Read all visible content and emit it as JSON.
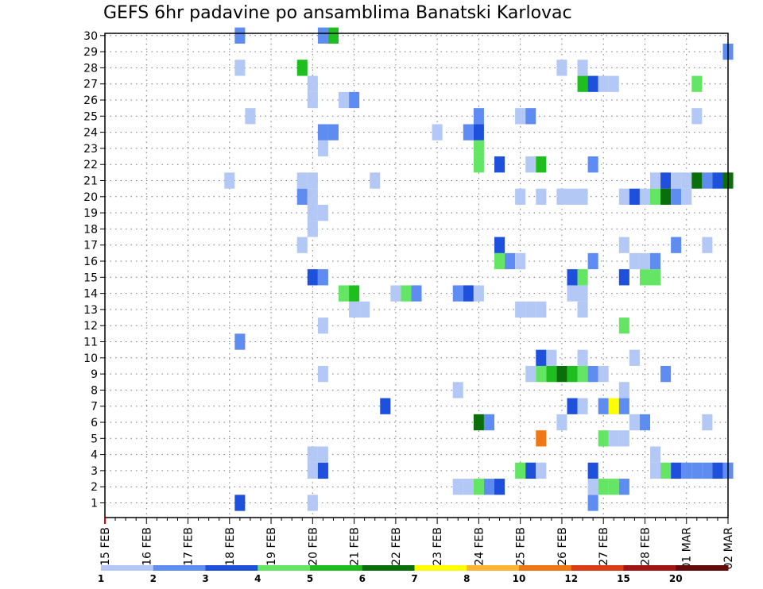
{
  "chart_data": {
    "type": "heatmap",
    "title": "GEFS 6hr padavine po ansamblima Banatski Karlovac",
    "xlabel": "",
    "ylabel": "",
    "y_members": [
      1,
      2,
      3,
      4,
      5,
      6,
      7,
      8,
      9,
      10,
      11,
      12,
      13,
      14,
      15,
      16,
      17,
      18,
      19,
      20,
      21,
      22,
      23,
      24,
      25,
      26,
      27,
      28,
      29,
      30
    ],
    "x_unit": "days from 15 FEB (6-hour steps)",
    "xlim": [
      0,
      15
    ],
    "x_tick_labels": [
      "15 FEB",
      "16 FEB",
      "17 FEB",
      "18 FEB",
      "19 FEB",
      "20 FEB",
      "21 FEB",
      "22 FEB",
      "23 FEB",
      "24 FEB",
      "25 FEB",
      "26 FEB",
      "27 FEB",
      "28 FEB",
      "01 MAR",
      "02 MAR"
    ],
    "grid": true,
    "legend": {
      "placement": "bottom",
      "thresholds": [
        "1",
        "2",
        "3",
        "4",
        "5",
        "6",
        "7",
        "8",
        "10",
        "12",
        "15",
        "20"
      ],
      "colors": [
        "#b4c8f5",
        "#5f8cf0",
        "#1e50dc",
        "#64e664",
        "#1ebe1e",
        "#0a6e0a",
        "#ffff00",
        "#ffb432",
        "#f07814",
        "#dc3c14",
        "#a01414",
        "#640a0a"
      ]
    },
    "cells": [
      {
        "member": 1,
        "day": 3.25,
        "level": 3
      },
      {
        "member": 1,
        "day": 5.0,
        "level": 1
      },
      {
        "member": 1,
        "day": 11.75,
        "level": 2
      },
      {
        "member": 2,
        "day": 8.5,
        "level": 1
      },
      {
        "member": 2,
        "day": 8.75,
        "level": 1
      },
      {
        "member": 2,
        "day": 9.0,
        "level": 4
      },
      {
        "member": 2,
        "day": 9.25,
        "level": 2
      },
      {
        "member": 2,
        "day": 9.5,
        "level": 3
      },
      {
        "member": 2,
        "day": 11.75,
        "level": 1
      },
      {
        "member": 2,
        "day": 12.0,
        "level": 4
      },
      {
        "member": 2,
        "day": 12.25,
        "level": 4
      },
      {
        "member": 2,
        "day": 12.5,
        "level": 2
      },
      {
        "member": 3,
        "day": 5.0,
        "level": 1
      },
      {
        "member": 3,
        "day": 5.25,
        "level": 3
      },
      {
        "member": 3,
        "day": 10.0,
        "level": 4
      },
      {
        "member": 3,
        "day": 10.25,
        "level": 3
      },
      {
        "member": 3,
        "day": 10.5,
        "level": 1
      },
      {
        "member": 3,
        "day": 11.75,
        "level": 3
      },
      {
        "member": 3,
        "day": 13.25,
        "level": 1
      },
      {
        "member": 3,
        "day": 13.5,
        "level": 4
      },
      {
        "member": 3,
        "day": 13.75,
        "level": 3
      },
      {
        "member": 3,
        "day": 14.0,
        "level": 2
      },
      {
        "member": 3,
        "day": 14.25,
        "level": 2
      },
      {
        "member": 3,
        "day": 14.5,
        "level": 2
      },
      {
        "member": 3,
        "day": 14.75,
        "level": 3
      },
      {
        "member": 3,
        "day": 15.0,
        "level": 2
      },
      {
        "member": 4,
        "day": 5.0,
        "level": 1
      },
      {
        "member": 4,
        "day": 5.25,
        "level": 1
      },
      {
        "member": 4,
        "day": 13.25,
        "level": 1
      },
      {
        "member": 5,
        "day": 10.5,
        "level": 9
      },
      {
        "member": 5,
        "day": 12.0,
        "level": 4
      },
      {
        "member": 5,
        "day": 12.25,
        "level": 1
      },
      {
        "member": 5,
        "day": 12.5,
        "level": 1
      },
      {
        "member": 6,
        "day": 9.0,
        "level": 6
      },
      {
        "member": 6,
        "day": 9.25,
        "level": 2
      },
      {
        "member": 6,
        "day": 11.0,
        "level": 1
      },
      {
        "member": 6,
        "day": 12.75,
        "level": 1
      },
      {
        "member": 6,
        "day": 13.0,
        "level": 2
      },
      {
        "member": 6,
        "day": 14.5,
        "level": 1
      },
      {
        "member": 7,
        "day": 6.75,
        "level": 3
      },
      {
        "member": 7,
        "day": 11.25,
        "level": 3
      },
      {
        "member": 7,
        "day": 11.5,
        "level": 1
      },
      {
        "member": 7,
        "day": 12.0,
        "level": 2
      },
      {
        "member": 7,
        "day": 12.25,
        "level": 7
      },
      {
        "member": 7,
        "day": 12.5,
        "level": 2
      },
      {
        "member": 8,
        "day": 8.5,
        "level": 1
      },
      {
        "member": 8,
        "day": 12.5,
        "level": 1
      },
      {
        "member": 9,
        "day": 5.25,
        "level": 1
      },
      {
        "member": 9,
        "day": 10.25,
        "level": 1
      },
      {
        "member": 9,
        "day": 10.5,
        "level": 4
      },
      {
        "member": 9,
        "day": 10.75,
        "level": 5
      },
      {
        "member": 9,
        "day": 11.0,
        "level": 6
      },
      {
        "member": 9,
        "day": 11.25,
        "level": 5
      },
      {
        "member": 9,
        "day": 11.5,
        "level": 4
      },
      {
        "member": 9,
        "day": 11.75,
        "level": 2
      },
      {
        "member": 9,
        "day": 12.0,
        "level": 1
      },
      {
        "member": 9,
        "day": 13.5,
        "level": 2
      },
      {
        "member": 10,
        "day": 10.5,
        "level": 3
      },
      {
        "member": 10,
        "day": 10.75,
        "level": 1
      },
      {
        "member": 10,
        "day": 11.5,
        "level": 1
      },
      {
        "member": 10,
        "day": 12.75,
        "level": 1
      },
      {
        "member": 11,
        "day": 3.25,
        "level": 2
      },
      {
        "member": 12,
        "day": 5.25,
        "level": 1
      },
      {
        "member": 12,
        "day": 12.5,
        "level": 4
      },
      {
        "member": 13,
        "day": 6.0,
        "level": 1
      },
      {
        "member": 13,
        "day": 6.25,
        "level": 1
      },
      {
        "member": 13,
        "day": 10.0,
        "level": 1
      },
      {
        "member": 13,
        "day": 10.25,
        "level": 1
      },
      {
        "member": 13,
        "day": 10.5,
        "level": 1
      },
      {
        "member": 13,
        "day": 11.5,
        "level": 1
      },
      {
        "member": 14,
        "day": 5.75,
        "level": 4
      },
      {
        "member": 14,
        "day": 6.0,
        "level": 5
      },
      {
        "member": 14,
        "day": 7.0,
        "level": 1
      },
      {
        "member": 14,
        "day": 7.25,
        "level": 4
      },
      {
        "member": 14,
        "day": 7.5,
        "level": 2
      },
      {
        "member": 14,
        "day": 8.5,
        "level": 2
      },
      {
        "member": 14,
        "day": 8.75,
        "level": 3
      },
      {
        "member": 14,
        "day": 9.0,
        "level": 1
      },
      {
        "member": 14,
        "day": 11.25,
        "level": 1
      },
      {
        "member": 14,
        "day": 11.5,
        "level": 1
      },
      {
        "member": 15,
        "day": 5.0,
        "level": 3
      },
      {
        "member": 15,
        "day": 5.25,
        "level": 2
      },
      {
        "member": 15,
        "day": 11.25,
        "level": 3
      },
      {
        "member": 15,
        "day": 11.5,
        "level": 4
      },
      {
        "member": 15,
        "day": 12.5,
        "level": 3
      },
      {
        "member": 15,
        "day": 13.0,
        "level": 4
      },
      {
        "member": 15,
        "day": 13.25,
        "level": 4
      },
      {
        "member": 16,
        "day": 9.5,
        "level": 4
      },
      {
        "member": 16,
        "day": 9.75,
        "level": 2
      },
      {
        "member": 16,
        "day": 10.0,
        "level": 1
      },
      {
        "member": 16,
        "day": 11.75,
        "level": 2
      },
      {
        "member": 16,
        "day": 12.75,
        "level": 1
      },
      {
        "member": 16,
        "day": 13.0,
        "level": 1
      },
      {
        "member": 16,
        "day": 13.25,
        "level": 2
      },
      {
        "member": 17,
        "day": 4.75,
        "level": 1
      },
      {
        "member": 17,
        "day": 9.5,
        "level": 3
      },
      {
        "member": 17,
        "day": 12.5,
        "level": 1
      },
      {
        "member": 17,
        "day": 13.75,
        "level": 2
      },
      {
        "member": 17,
        "day": 14.5,
        "level": 1
      },
      {
        "member": 18,
        "day": 5.0,
        "level": 1
      },
      {
        "member": 19,
        "day": 5.0,
        "level": 1
      },
      {
        "member": 19,
        "day": 5.25,
        "level": 1
      },
      {
        "member": 20,
        "day": 4.75,
        "level": 2
      },
      {
        "member": 20,
        "day": 5.0,
        "level": 1
      },
      {
        "member": 20,
        "day": 10.0,
        "level": 1
      },
      {
        "member": 20,
        "day": 10.5,
        "level": 1
      },
      {
        "member": 20,
        "day": 11.0,
        "level": 1
      },
      {
        "member": 20,
        "day": 11.25,
        "level": 1
      },
      {
        "member": 20,
        "day": 11.5,
        "level": 1
      },
      {
        "member": 20,
        "day": 12.5,
        "level": 1
      },
      {
        "member": 20,
        "day": 12.75,
        "level": 3
      },
      {
        "member": 20,
        "day": 13.0,
        "level": 1
      },
      {
        "member": 20,
        "day": 13.25,
        "level": 4
      },
      {
        "member": 20,
        "day": 13.5,
        "level": 6
      },
      {
        "member": 20,
        "day": 13.75,
        "level": 2
      },
      {
        "member": 20,
        "day": 14.0,
        "level": 1
      },
      {
        "member": 21,
        "day": 3.0,
        "level": 1
      },
      {
        "member": 21,
        "day": 4.75,
        "level": 1
      },
      {
        "member": 21,
        "day": 5.0,
        "level": 1
      },
      {
        "member": 21,
        "day": 6.5,
        "level": 1
      },
      {
        "member": 21,
        "day": 13.25,
        "level": 1
      },
      {
        "member": 21,
        "day": 13.5,
        "level": 3
      },
      {
        "member": 21,
        "day": 13.75,
        "level": 1
      },
      {
        "member": 21,
        "day": 14.0,
        "level": 1
      },
      {
        "member": 21,
        "day": 14.25,
        "level": 6
      },
      {
        "member": 21,
        "day": 14.5,
        "level": 2
      },
      {
        "member": 21,
        "day": 14.75,
        "level": 3
      },
      {
        "member": 21,
        "day": 15.0,
        "level": 6
      },
      {
        "member": 22,
        "day": 9.0,
        "level": 4
      },
      {
        "member": 22,
        "day": 9.5,
        "level": 3
      },
      {
        "member": 22,
        "day": 10.25,
        "level": 1
      },
      {
        "member": 22,
        "day": 10.5,
        "level": 5
      },
      {
        "member": 22,
        "day": 11.75,
        "level": 2
      },
      {
        "member": 23,
        "day": 5.25,
        "level": 1
      },
      {
        "member": 23,
        "day": 9.0,
        "level": 4
      },
      {
        "member": 24,
        "day": 5.25,
        "level": 2
      },
      {
        "member": 24,
        "day": 5.5,
        "level": 2
      },
      {
        "member": 24,
        "day": 8.0,
        "level": 1
      },
      {
        "member": 24,
        "day": 8.75,
        "level": 2
      },
      {
        "member": 24,
        "day": 9.0,
        "level": 3
      },
      {
        "member": 25,
        "day": 3.5,
        "level": 1
      },
      {
        "member": 25,
        "day": 9.0,
        "level": 2
      },
      {
        "member": 25,
        "day": 10.0,
        "level": 1
      },
      {
        "member": 25,
        "day": 10.25,
        "level": 2
      },
      {
        "member": 25,
        "day": 14.25,
        "level": 1
      },
      {
        "member": 26,
        "day": 5.0,
        "level": 1
      },
      {
        "member": 26,
        "day": 5.75,
        "level": 1
      },
      {
        "member": 26,
        "day": 6.0,
        "level": 2
      },
      {
        "member": 27,
        "day": 5.0,
        "level": 1
      },
      {
        "member": 27,
        "day": 11.5,
        "level": 5
      },
      {
        "member": 27,
        "day": 11.75,
        "level": 3
      },
      {
        "member": 27,
        "day": 12.0,
        "level": 1
      },
      {
        "member": 27,
        "day": 12.25,
        "level": 1
      },
      {
        "member": 27,
        "day": 14.25,
        "level": 4
      },
      {
        "member": 28,
        "day": 3.25,
        "level": 1
      },
      {
        "member": 28,
        "day": 4.75,
        "level": 5
      },
      {
        "member": 28,
        "day": 11.0,
        "level": 1
      },
      {
        "member": 28,
        "day": 11.5,
        "level": 1
      },
      {
        "member": 29,
        "day": 15.0,
        "level": 2
      },
      {
        "member": 30,
        "day": 3.25,
        "level": 2
      },
      {
        "member": 30,
        "day": 5.25,
        "level": 2
      },
      {
        "member": 30,
        "day": 5.5,
        "level": 5
      }
    ]
  }
}
